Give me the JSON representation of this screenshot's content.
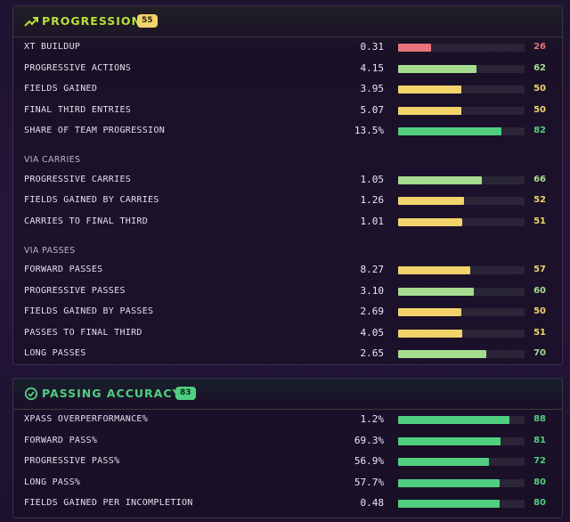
{
  "colors": {
    "red": "#e8737a",
    "lightgreen": "#a6dc8f",
    "yellow": "#f2d36a",
    "green": "#4fcf7f"
  },
  "progression": {
    "title": "PROGRESSION",
    "badge": "55",
    "icon": "trending-up-icon",
    "rows": [
      {
        "label": "XT BUILDUP",
        "value": "0.31",
        "pct": "26",
        "percentile": 26,
        "color": "red"
      },
      {
        "label": "PROGRESSIVE ACTIONS",
        "value": "4.15",
        "pct": "62",
        "percentile": 62,
        "color": "lightgreen"
      },
      {
        "label": "FIELDS GAINED",
        "value": "3.95",
        "pct": "50",
        "percentile": 50,
        "color": "yellow"
      },
      {
        "label": "FINAL THIRD ENTRIES",
        "value": "5.07",
        "pct": "50",
        "percentile": 50,
        "color": "yellow"
      },
      {
        "label": "SHARE OF TEAM PROGRESSION",
        "value": "13.5%",
        "pct": "82",
        "percentile": 82,
        "color": "green"
      }
    ],
    "carries_heading": "VIA CARRIES",
    "carries": [
      {
        "label": "PROGRESSIVE CARRIES",
        "value": "1.05",
        "pct": "66",
        "percentile": 66,
        "color": "lightgreen"
      },
      {
        "label": "FIELDS GAINED BY CARRIES",
        "value": "1.26",
        "pct": "52",
        "percentile": 52,
        "color": "yellow"
      },
      {
        "label": "CARRIES TO FINAL THIRD",
        "value": "1.01",
        "pct": "51",
        "percentile": 51,
        "color": "yellow"
      }
    ],
    "passes_heading": "VIA PASSES",
    "passes": [
      {
        "label": "FORWARD PASSES",
        "value": "8.27",
        "pct": "57",
        "percentile": 57,
        "color": "yellow"
      },
      {
        "label": "PROGRESSIVE PASSES",
        "value": "3.10",
        "pct": "60",
        "percentile": 60,
        "color": "lightgreen"
      },
      {
        "label": "FIELDS GAINED BY PASSES",
        "value": "2.69",
        "pct": "50",
        "percentile": 50,
        "color": "yellow"
      },
      {
        "label": "PASSES TO FINAL THIRD",
        "value": "4.05",
        "pct": "51",
        "percentile": 51,
        "color": "yellow"
      },
      {
        "label": "LONG PASSES",
        "value": "2.65",
        "pct": "70",
        "percentile": 70,
        "color": "lightgreen"
      }
    ]
  },
  "accuracy": {
    "title": "PASSING ACCURACY",
    "badge": "83",
    "icon": "check-circle-icon",
    "rows": [
      {
        "label": "XPASS OVERPERFORMANCE%",
        "value": "1.2%",
        "pct": "88",
        "percentile": 88,
        "color": "green"
      },
      {
        "label": "FORWARD PASS%",
        "value": "69.3%",
        "pct": "81",
        "percentile": 81,
        "color": "green"
      },
      {
        "label": "PROGRESSIVE PASS%",
        "value": "56.9%",
        "pct": "72",
        "percentile": 72,
        "color": "green"
      },
      {
        "label": "LONG PASS%",
        "value": "57.7%",
        "pct": "80",
        "percentile": 80,
        "color": "green"
      },
      {
        "label": "FIELDS GAINED PER INCOMPLETION",
        "value": "0.48",
        "pct": "80",
        "percentile": 80,
        "color": "green"
      }
    ]
  }
}
